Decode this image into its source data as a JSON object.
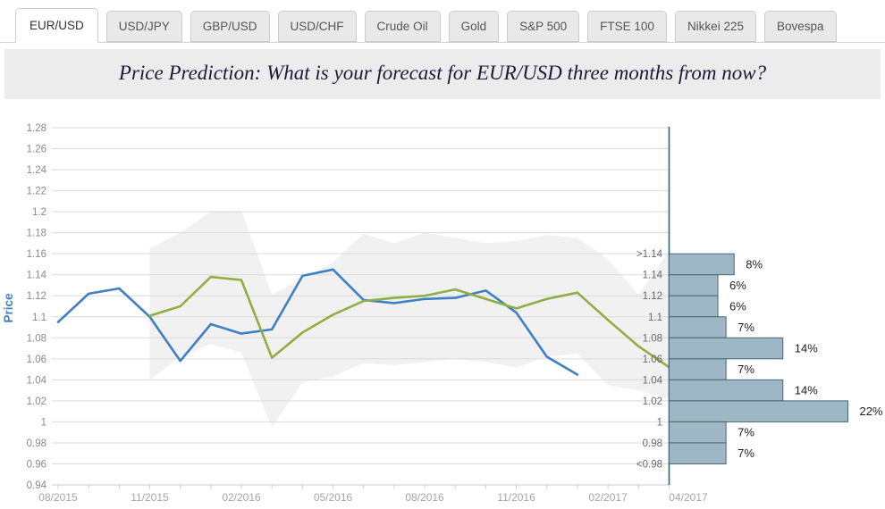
{
  "tabs": {
    "items": [
      {
        "label": "EUR/USD",
        "active": true
      },
      {
        "label": "USD/JPY",
        "active": false
      },
      {
        "label": "GBP/USD",
        "active": false
      },
      {
        "label": "USD/CHF",
        "active": false
      },
      {
        "label": "Crude Oil",
        "active": false
      },
      {
        "label": "Gold",
        "active": false
      },
      {
        "label": "S&P 500",
        "active": false
      },
      {
        "label": "FTSE 100",
        "active": false
      },
      {
        "label": "Nikkei 225",
        "active": false
      },
      {
        "label": "Bovespa",
        "active": false
      }
    ]
  },
  "banner": {
    "title": "Price Prediction: What is your forecast for EUR/USD three months from now?"
  },
  "chart_data": {
    "type": "line",
    "title": "Price Prediction: What is your forecast for EUR/USD three months from now?",
    "ylabel": "Price",
    "ylim": [
      0.94,
      1.28
    ],
    "ytick_step": 0.02,
    "grid": true,
    "legend": "none",
    "x_axis": {
      "unit": "month",
      "start": "08/2015",
      "tick_labels": [
        "08/2015",
        "11/2015",
        "02/2016",
        "05/2016",
        "08/2016",
        "11/2016",
        "02/2017"
      ],
      "tick_month_index": [
        0,
        3,
        6,
        9,
        12,
        15,
        18
      ],
      "forecast_tick_label": "04/2017"
    },
    "series": [
      {
        "id": "blue-price-history",
        "color": "#3e80c4",
        "start_month_index": 0,
        "values": [
          1.095,
          1.122,
          1.127,
          1.1,
          1.058,
          1.093,
          1.084,
          1.088,
          1.139,
          1.145,
          1.116,
          1.113,
          1.117,
          1.118,
          1.125,
          1.104,
          1.062,
          1.045
        ]
      },
      {
        "id": "green-forecast-average",
        "color": "#8fae43",
        "start_month_index": 3,
        "values": [
          1.101,
          1.11,
          1.138,
          1.135,
          1.061,
          1.085,
          1.102,
          1.115,
          1.118,
          1.12,
          1.126,
          1.117,
          1.108,
          1.117,
          1.123,
          1.097,
          1.072,
          1.052
        ]
      }
    ],
    "band": {
      "color": "#f1f1f1",
      "start_month_index": 3,
      "top": [
        1.165,
        1.18,
        1.2,
        1.201,
        1.121,
        1.136,
        1.152,
        1.179,
        1.17,
        1.18,
        1.175,
        1.17,
        1.172,
        1.178,
        1.175,
        1.155,
        1.121,
        1.163
      ],
      "bottom": [
        1.04,
        1.062,
        1.074,
        1.066,
        0.995,
        1.038,
        1.043,
        1.056,
        1.054,
        1.057,
        1.06,
        1.057,
        1.052,
        1.062,
        1.065,
        1.035,
        1.03,
        1.022
      ]
    },
    "histogram": {
      "orientation": "horizontal",
      "bar_color": "#9db7c5",
      "bar_border_color": "#44687a",
      "axis_line_color": "#3a5f6e",
      "forecast_date_label": "04/2017",
      "bin_edges": [
        1.16,
        1.14,
        1.12,
        1.1,
        1.08,
        1.06,
        1.04,
        1.02,
        1.0,
        0.98,
        0.96
      ],
      "bin_edge_labels": [
        ">1.14",
        "1.14",
        "1.12",
        "1.1",
        "1.08",
        "1.06",
        "1.04",
        "1.02",
        "1",
        "0.98",
        "<0.98"
      ],
      "bar_values_pct": [
        8,
        6,
        6,
        7,
        14,
        7,
        14,
        22,
        7,
        7
      ],
      "bar_value_labels": [
        "8%",
        "6%",
        "6%",
        "7%",
        "14%",
        "7%",
        "14%",
        "22%",
        "7%",
        "7%"
      ]
    },
    "colors": {
      "grid": "#dadada",
      "axis": "#c3ccd3",
      "y_tick_text": "#8a8a8a",
      "x_tick_text": "#a6a6a6",
      "price_title": "#3e80c4"
    }
  }
}
